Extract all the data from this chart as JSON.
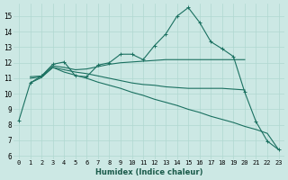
{
  "xlabel": "Humidex (Indice chaleur)",
  "bg_color": "#cce8e4",
  "grid_color": "#b0d8d0",
  "line_color": "#1a7060",
  "xlim": [
    -0.5,
    23.5
  ],
  "ylim": [
    5.8,
    15.8
  ],
  "yticks": [
    6,
    7,
    8,
    9,
    10,
    11,
    12,
    13,
    14,
    15
  ],
  "xticks": [
    0,
    1,
    2,
    3,
    4,
    5,
    6,
    7,
    8,
    9,
    10,
    11,
    12,
    13,
    14,
    15,
    16,
    17,
    18,
    19,
    20,
    21,
    22,
    23
  ],
  "series": [
    {
      "x": [
        0,
        1,
        2,
        3,
        4,
        5,
        6,
        7,
        8,
        9,
        10,
        11,
        12,
        13,
        14,
        15,
        16,
        17,
        18,
        19,
        20,
        21,
        22,
        23
      ],
      "y": [
        8.3,
        10.7,
        11.15,
        11.9,
        12.05,
        11.15,
        11.1,
        11.85,
        12.0,
        12.55,
        12.55,
        12.2,
        13.1,
        13.85,
        15.0,
        15.55,
        14.6,
        13.35,
        12.9,
        12.4,
        10.1,
        8.2,
        6.95,
        6.4
      ],
      "marker": true
    },
    {
      "x": [
        1,
        2,
        3,
        4,
        5,
        6,
        7,
        8,
        9,
        10,
        11,
        12,
        13,
        14,
        15,
        16,
        17,
        18,
        19,
        20
      ],
      "y": [
        11.1,
        11.15,
        11.8,
        11.7,
        11.55,
        11.6,
        11.75,
        11.9,
        12.0,
        12.05,
        12.1,
        12.15,
        12.2,
        12.2,
        12.2,
        12.2,
        12.2,
        12.2,
        12.2,
        12.2
      ],
      "marker": false
    },
    {
      "x": [
        1,
        2,
        3,
        4,
        5,
        6,
        7,
        8,
        9,
        10,
        11,
        12,
        13,
        14,
        15,
        16,
        17,
        18,
        19,
        20
      ],
      "y": [
        11.0,
        11.1,
        11.7,
        11.55,
        11.4,
        11.3,
        11.15,
        11.0,
        10.85,
        10.7,
        10.6,
        10.55,
        10.45,
        10.4,
        10.35,
        10.35,
        10.35,
        10.35,
        10.3,
        10.25
      ],
      "marker": false
    },
    {
      "x": [
        1,
        2,
        3,
        4,
        5,
        6,
        7,
        8,
        9,
        10,
        11,
        12,
        13,
        14,
        15,
        16,
        17,
        18,
        19,
        20,
        21,
        22,
        23
      ],
      "y": [
        10.7,
        11.05,
        11.7,
        11.4,
        11.2,
        11.0,
        10.75,
        10.55,
        10.35,
        10.1,
        9.9,
        9.65,
        9.45,
        9.25,
        9.0,
        8.8,
        8.55,
        8.35,
        8.15,
        7.9,
        7.7,
        7.45,
        6.4
      ],
      "marker": false
    }
  ]
}
